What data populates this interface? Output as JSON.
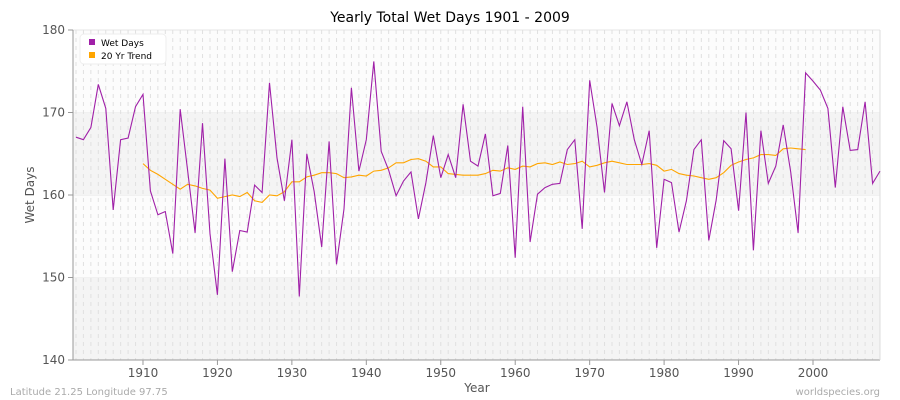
{
  "chart_data": {
    "type": "line",
    "title": "Yearly Total Wet Days 1901 - 2009",
    "xlabel": "Year",
    "ylabel": "Wet Days",
    "xlim": [
      1901,
      2009
    ],
    "ylim": [
      140,
      180
    ],
    "xticks": [
      1910,
      1920,
      1930,
      1940,
      1950,
      1960,
      1970,
      1980,
      1990,
      2000
    ],
    "yticks": [
      140,
      150,
      160,
      170,
      180
    ],
    "grid": true,
    "legend_position": "top-left",
    "series": [
      {
        "name": "Wet Days",
        "color": "#a020a8",
        "start_year": 1901,
        "values": [
          167.0,
          166.7,
          168.2,
          173.4,
          170.5,
          158.2,
          166.7,
          166.9,
          170.7,
          172.2,
          160.5,
          157.6,
          158.0,
          152.9,
          170.4,
          163.0,
          155.4,
          168.7,
          155.3,
          147.9,
          164.4,
          150.7,
          155.7,
          155.5,
          161.2,
          160.3,
          173.6,
          164.5,
          159.3,
          166.7,
          147.7,
          165.0,
          160.4,
          153.7,
          166.5,
          151.6,
          158.3,
          173.0,
          162.9,
          166.7,
          176.2,
          165.3,
          163.0,
          159.9,
          161.7,
          162.8,
          157.1,
          161.5,
          167.2,
          162.1,
          164.9,
          162.1,
          171.0,
          164.1,
          163.5,
          167.4,
          159.9,
          160.2,
          166.0,
          152.4,
          170.7,
          154.3,
          160.1,
          160.9,
          161.3,
          161.4,
          165.5,
          166.7,
          155.9,
          173.9,
          168.2,
          160.3,
          171.1,
          168.4,
          171.3,
          166.7,
          163.7,
          167.8,
          153.6,
          161.9,
          161.5,
          155.5,
          159.3,
          165.5,
          166.7,
          154.5,
          159.4,
          166.6,
          165.6,
          158.1,
          170.0,
          153.3,
          167.8,
          161.4,
          163.5,
          168.5,
          162.8,
          155.4,
          174.8,
          173.8,
          172.7,
          170.5,
          160.9,
          170.7,
          165.4,
          165.5,
          171.3,
          161.4,
          162.9
        ]
      },
      {
        "name": "20 Yr Trend",
        "color": "#ffa500",
        "start_year": 1910,
        "values": [
          163.8,
          163.0,
          162.5,
          161.9,
          161.3,
          160.7,
          161.3,
          161.1,
          160.8,
          160.6,
          159.6,
          159.8,
          160.0,
          159.8,
          160.3,
          159.3,
          159.1,
          160.0,
          159.9,
          160.4,
          161.6,
          161.6,
          162.2,
          162.4,
          162.7,
          162.7,
          162.6,
          162.1,
          162.2,
          162.4,
          162.3,
          162.9,
          163.0,
          163.3,
          163.9,
          163.9,
          164.3,
          164.4,
          164.1,
          163.4,
          163.4,
          162.6,
          162.5,
          162.4,
          162.4,
          162.4,
          162.6,
          163.0,
          162.9,
          163.3,
          163.1,
          163.5,
          163.4,
          163.8,
          163.9,
          163.7,
          164.0,
          163.7,
          163.8,
          164.1,
          163.4,
          163.6,
          163.9,
          164.1,
          163.9,
          163.7,
          163.7,
          163.7,
          163.8,
          163.6,
          162.9,
          163.1,
          162.6,
          162.4,
          162.3,
          162.1,
          161.9,
          162.1,
          162.7,
          163.6,
          164.0,
          164.3,
          164.5,
          164.9,
          164.9,
          164.8,
          165.6,
          165.7,
          165.6,
          165.5
        ]
      }
    ]
  },
  "footer": {
    "location": "Latitude 21.25 Longitude 97.75",
    "credit": "worldspecies.org"
  }
}
